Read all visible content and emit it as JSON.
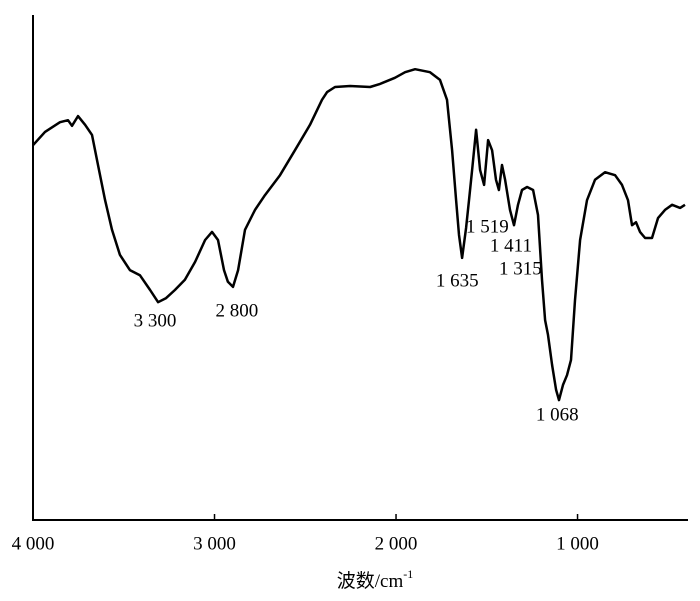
{
  "chart_data": {
    "type": "line",
    "color": "#000000",
    "xlabel": {
      "text": "波数/cm",
      "sup": "-1"
    },
    "xlim": [
      4000,
      408
    ],
    "ylim": [
      0,
      100
    ],
    "xticks": [
      {
        "value": 4000,
        "label": "4 000"
      },
      {
        "value": 3000,
        "label": "3 000"
      },
      {
        "value": 2000,
        "label": "2 000"
      },
      {
        "value": 1000,
        "label": "1 000"
      }
    ],
    "x": [
      4000,
      3934,
      3851,
      3807,
      3785,
      3752,
      3713,
      3675,
      3642,
      3603,
      3565,
      3521,
      3466,
      3411,
      3355,
      3311,
      3267,
      3218,
      3163,
      3107,
      3052,
      3014,
      2981,
      2948,
      2926,
      2898,
      2870,
      2832,
      2777,
      2722,
      2639,
      2557,
      2474,
      2408,
      2380,
      2336,
      2253,
      2143,
      2088,
      2006,
      1950,
      1895,
      1813,
      1758,
      1719,
      1691,
      1669,
      1653,
      1636,
      1614,
      1598,
      1581,
      1559,
      1537,
      1515,
      1493,
      1471,
      1449,
      1433,
      1416,
      1399,
      1372,
      1350,
      1328,
      1306,
      1278,
      1245,
      1218,
      1196,
      1179,
      1163,
      1140,
      1118,
      1102,
      1080,
      1058,
      1036,
      1014,
      986,
      948,
      904,
      849,
      793,
      755,
      722,
      700,
      678,
      656,
      628,
      590,
      557,
      518,
      479,
      435,
      408
    ],
    "values": [
      73.5,
      76.1,
      78.0,
      78.4,
      77.3,
      79.2,
      77.5,
      75.5,
      69.6,
      62.7,
      56.9,
      52.0,
      49.0,
      48.0,
      45.1,
      42.7,
      43.5,
      45.1,
      47.1,
      50.6,
      54.9,
      56.5,
      54.9,
      49.0,
      46.7,
      45.7,
      49.0,
      56.9,
      60.8,
      63.7,
      67.6,
      72.5,
      77.5,
      82.4,
      83.9,
      84.9,
      85.1,
      84.9,
      85.5,
      86.7,
      87.8,
      88.4,
      87.8,
      86.3,
      82.4,
      72.5,
      62.7,
      55.9,
      51.4,
      57.3,
      62.7,
      68.6,
      76.5,
      68.6,
      65.7,
      74.5,
      72.5,
      66.7,
      64.7,
      69.6,
      66.7,
      60.8,
      57.8,
      61.8,
      64.7,
      65.3,
      64.7,
      59.8,
      47.1,
      39.2,
      36.3,
      30.4,
      25.5,
      23.5,
      26.5,
      28.4,
      31.4,
      43.1,
      54.9,
      62.7,
      66.7,
      68.2,
      67.6,
      65.7,
      62.7,
      57.8,
      58.4,
      56.5,
      55.3,
      55.3,
      59.2,
      60.8,
      61.8,
      61.2,
      61.8
    ],
    "annotations": [
      {
        "label": "3 300",
        "value": 3300
      },
      {
        "label": "2 800",
        "value": 2800
      },
      {
        "label": "1 635",
        "value": 1635
      },
      {
        "label": "1 519",
        "value": 1519
      },
      {
        "label": "1 411",
        "value": 1411
      },
      {
        "label": "1 315",
        "value": 1315
      },
      {
        "label": "1 068",
        "value": 1068
      }
    ]
  }
}
